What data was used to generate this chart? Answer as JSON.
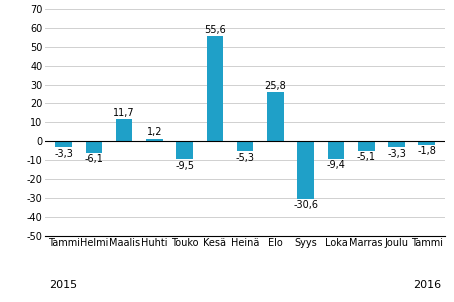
{
  "categories": [
    "Tammi",
    "Helmi",
    "Maalis",
    "Huhti",
    "Touko",
    "Kesä",
    "Heinä",
    "Elo",
    "Syys",
    "Loka",
    "Marras",
    "Joulu",
    "Tammi"
  ],
  "values": [
    -3.3,
    -6.1,
    11.7,
    1.2,
    -9.5,
    55.6,
    -5.3,
    25.8,
    -30.6,
    -9.4,
    -5.1,
    -3.3,
    -1.8
  ],
  "bar_color": "#1fa0c8",
  "ylim": [
    -50,
    70
  ],
  "yticks": [
    -50,
    -40,
    -30,
    -20,
    -10,
    0,
    10,
    20,
    30,
    40,
    50,
    60,
    70
  ],
  "label_fontsize": 7.0,
  "tick_fontsize": 7.0,
  "year_fontsize": 8.0,
  "bar_width": 0.55,
  "background_color": "#ffffff",
  "grid_color": "#d0d0d0"
}
